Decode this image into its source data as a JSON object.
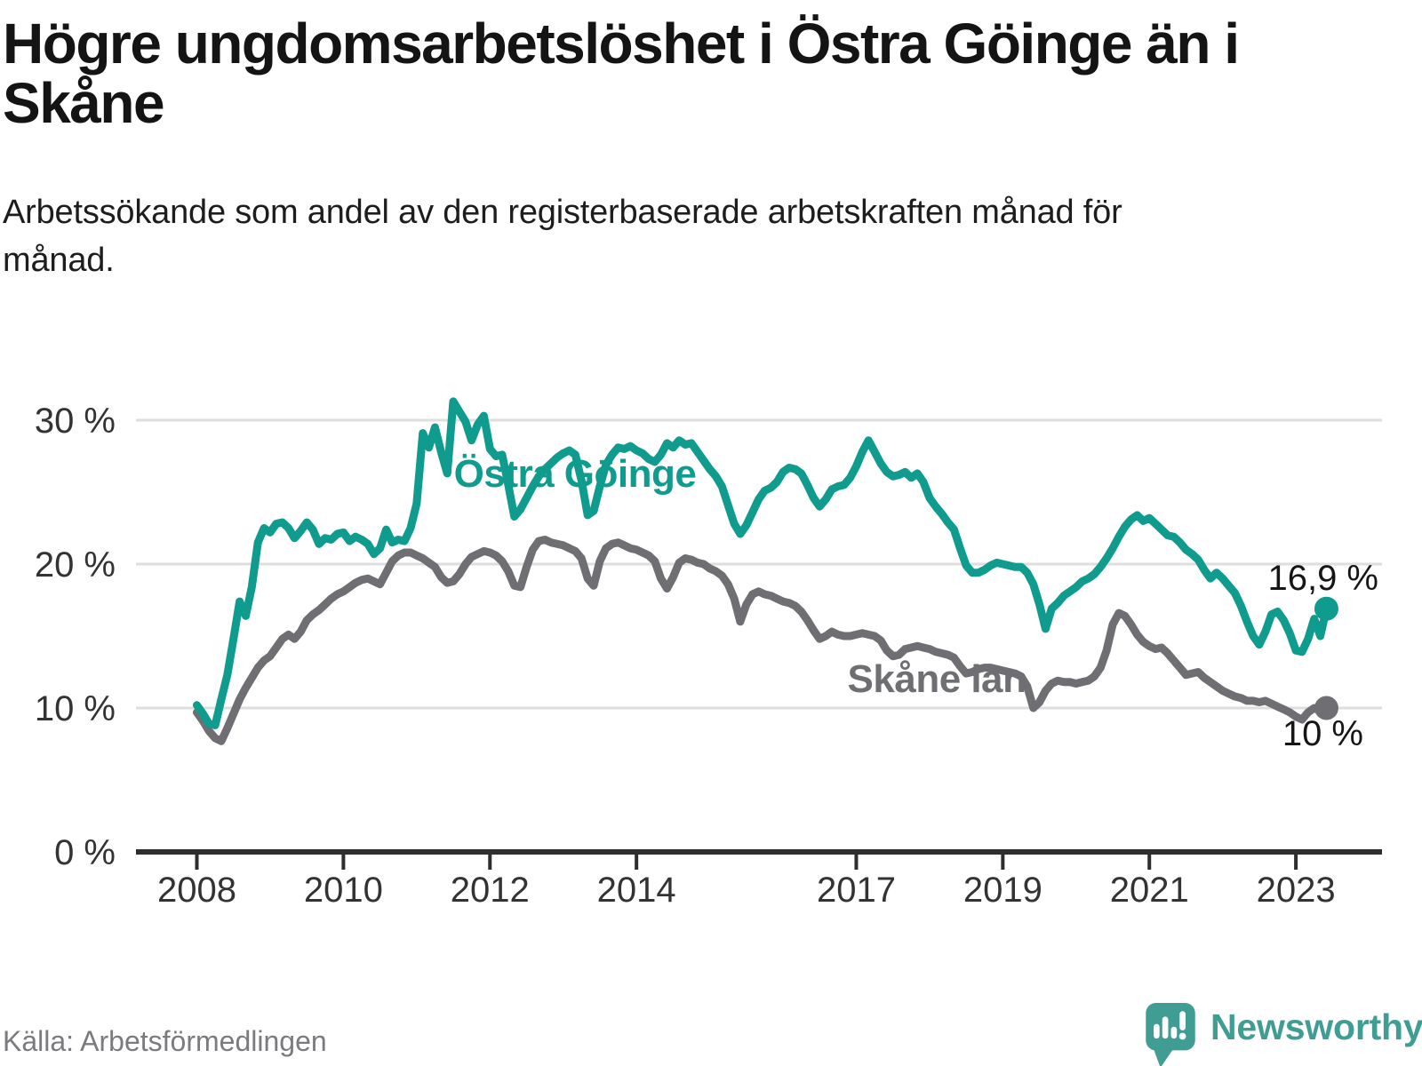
{
  "header": {
    "title": "Högre ungdomsarbetslöshet i Östra Göinge än i Skåne",
    "subtitle": "Arbetssökande som andel av den registerbaserade arbetskraften månad för månad."
  },
  "footer": {
    "source": "Källa: Arbetsförmedlingen",
    "brand": "Newsworthy"
  },
  "colors": {
    "accent_teal": "#0f9b8d",
    "series_gray": "#6e6e73",
    "gridline": "#dedede",
    "axis": "#2e2e2e",
    "tick_text": "#333333",
    "title_text": "#141414",
    "value_text": "#161616",
    "source_text": "#7a7a7f",
    "brand_teal": "#3f9d94"
  },
  "chart_data": {
    "type": "line",
    "unit": "%",
    "frequency": "monthly",
    "x_start": "2008-01",
    "x_end": "2023-06",
    "grid": true,
    "ylim": [
      0,
      33
    ],
    "xticks": [
      2008,
      2010,
      2012,
      2014,
      2017,
      2019,
      2021,
      2023
    ],
    "yticks": [
      {
        "value": 0,
        "label": "0 %"
      },
      {
        "value": 10,
        "label": "10 %"
      },
      {
        "value": 20,
        "label": "20 %"
      },
      {
        "value": 30,
        "label": "30 %"
      }
    ],
    "series": [
      {
        "name": "Östra Göinge",
        "color": "#0f9b8d",
        "end_label": "16,9 %",
        "end_value": 16.9,
        "values": [
          10.2,
          9.6,
          8.9,
          8.8,
          10.6,
          12.3,
          14.8,
          17.4,
          16.4,
          18.4,
          21.5,
          22.5,
          22.2,
          22.8,
          22.9,
          22.5,
          21.8,
          22.3,
          22.9,
          22.4,
          21.4,
          21.8,
          21.7,
          22.1,
          22.2,
          21.6,
          21.9,
          21.7,
          21.4,
          20.7,
          21.1,
          22.4,
          21.5,
          21.7,
          21.6,
          22.5,
          24.2,
          29.1,
          28.1,
          29.5,
          27.8,
          26.3,
          31.3,
          30.6,
          29.9,
          28.6,
          29.7,
          30.3,
          28.0,
          27.5,
          27.6,
          25.5,
          23.3,
          23.8,
          24.6,
          25.4,
          26.1,
          26.6,
          27.0,
          27.4,
          27.7,
          27.9,
          27.6,
          25.8,
          23.4,
          23.7,
          25.4,
          26.9,
          27.6,
          28.1,
          28.0,
          28.2,
          27.9,
          27.7,
          27.3,
          27.1,
          27.6,
          28.4,
          28.1,
          28.6,
          28.3,
          28.4,
          27.8,
          27.2,
          26.6,
          26.1,
          25.4,
          24.1,
          22.8,
          22.1,
          22.7,
          23.6,
          24.5,
          25.1,
          25.3,
          25.7,
          26.4,
          26.7,
          26.6,
          26.3,
          25.5,
          24.6,
          24.0,
          24.5,
          25.2,
          25.4,
          25.5,
          26.0,
          26.8,
          27.8,
          28.6,
          27.8,
          27.0,
          26.4,
          26.1,
          26.2,
          26.4,
          26.0,
          26.3,
          25.7,
          24.6,
          24.0,
          23.5,
          22.9,
          22.4,
          21.1,
          19.9,
          19.4,
          19.4,
          19.6,
          19.9,
          20.1,
          20.0,
          19.9,
          19.8,
          19.8,
          19.4,
          18.6,
          17.2,
          15.5,
          16.9,
          17.3,
          17.8,
          18.1,
          18.4,
          18.8,
          19.0,
          19.3,
          19.8,
          20.4,
          21.1,
          21.9,
          22.6,
          23.1,
          23.4,
          23.0,
          23.2,
          22.8,
          22.4,
          22.0,
          21.9,
          21.5,
          21.0,
          20.7,
          20.3,
          19.6,
          19.0,
          19.4,
          19.0,
          18.5,
          18.0,
          17.1,
          16.0,
          15.0,
          14.4,
          15.3,
          16.5,
          16.7,
          16.1,
          15.2,
          14.0,
          13.9,
          14.8,
          16.2,
          15.0,
          16.9
        ]
      },
      {
        "name": "Skåne län",
        "color": "#6e6e73",
        "end_label": "10 %",
        "end_value": 10.0,
        "values": [
          9.7,
          9.1,
          8.4,
          7.9,
          7.7,
          8.6,
          9.6,
          10.6,
          11.4,
          12.1,
          12.8,
          13.3,
          13.6,
          14.2,
          14.8,
          15.1,
          14.8,
          15.3,
          16.1,
          16.5,
          16.8,
          17.2,
          17.6,
          17.9,
          18.1,
          18.4,
          18.7,
          18.9,
          19.0,
          18.8,
          18.6,
          19.4,
          20.2,
          20.6,
          20.8,
          20.8,
          20.6,
          20.4,
          20.1,
          19.8,
          19.1,
          18.7,
          18.8,
          19.3,
          20.0,
          20.5,
          20.7,
          20.9,
          20.8,
          20.6,
          20.2,
          19.5,
          18.5,
          18.4,
          19.8,
          21.0,
          21.6,
          21.7,
          21.5,
          21.4,
          21.3,
          21.1,
          20.9,
          20.4,
          19.0,
          18.5,
          20.2,
          21.1,
          21.4,
          21.5,
          21.3,
          21.1,
          21.0,
          20.8,
          20.6,
          20.2,
          19.0,
          18.3,
          19.1,
          20.1,
          20.4,
          20.3,
          20.1,
          20.0,
          19.7,
          19.5,
          19.2,
          18.6,
          17.6,
          16.0,
          17.2,
          17.9,
          18.1,
          17.9,
          17.8,
          17.6,
          17.4,
          17.3,
          17.1,
          16.7,
          16.1,
          15.4,
          14.8,
          15.0,
          15.3,
          15.1,
          15.0,
          15.0,
          15.1,
          15.2,
          15.1,
          15.0,
          14.7,
          14.0,
          13.6,
          13.7,
          14.1,
          14.2,
          14.3,
          14.2,
          14.1,
          13.9,
          13.8,
          13.7,
          13.5,
          12.9,
          12.4,
          12.5,
          12.7,
          12.8,
          12.8,
          12.7,
          12.6,
          12.5,
          12.4,
          12.2,
          11.5,
          10.0,
          10.4,
          11.2,
          11.7,
          11.9,
          11.8,
          11.8,
          11.7,
          11.8,
          11.9,
          12.2,
          12.8,
          14.0,
          15.8,
          16.6,
          16.4,
          15.8,
          15.1,
          14.6,
          14.3,
          14.1,
          14.2,
          13.8,
          13.3,
          12.8,
          12.3,
          12.4,
          12.5,
          12.1,
          11.8,
          11.5,
          11.2,
          11.0,
          10.8,
          10.7,
          10.5,
          10.5,
          10.4,
          10.5,
          10.3,
          10.1,
          9.9,
          9.7,
          9.4,
          9.2,
          9.7,
          10.0,
          9.8,
          10.0
        ]
      }
    ]
  }
}
